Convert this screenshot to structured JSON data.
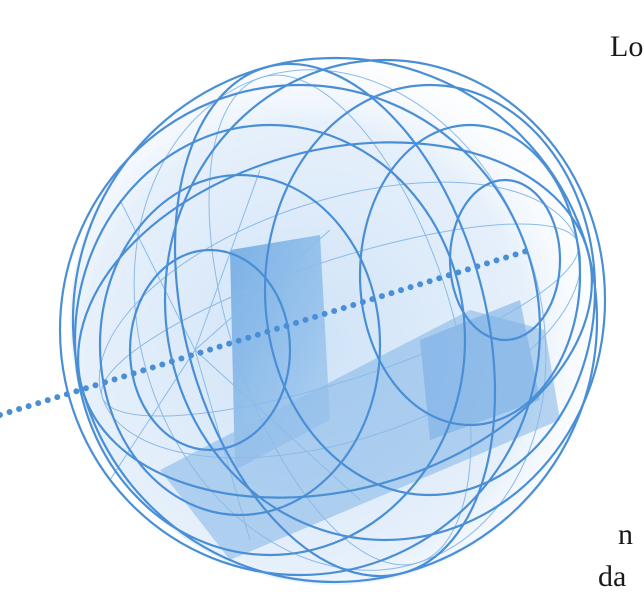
{
  "texts": [
    "Lo",
    "n",
    "da"
  ]
}
